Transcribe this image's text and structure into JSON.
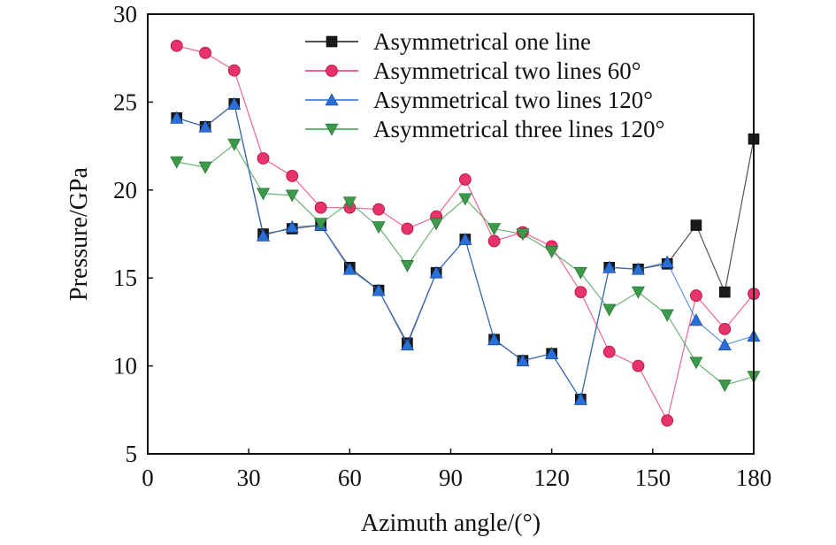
{
  "chart_data": {
    "type": "line",
    "title": "",
    "xlabel": "Azimuth angle/(°)",
    "ylabel": "Pressure/GPa",
    "xlim": [
      0,
      180
    ],
    "ylim": [
      5,
      30
    ],
    "xticks": [
      "0",
      "30",
      "60",
      "90",
      "120",
      "150",
      "180"
    ],
    "yticks": [
      "5",
      "10",
      "15",
      "20",
      "25",
      "30"
    ],
    "grid": false,
    "legend_position": "top-right",
    "x": [
      8.6,
      17.1,
      25.7,
      34.3,
      42.9,
      51.4,
      60,
      68.6,
      77.1,
      85.7,
      94.3,
      102.9,
      111.4,
      120,
      128.6,
      137.1,
      145.7,
      154.3,
      162.9,
      171.4,
      180
    ],
    "series": [
      {
        "name": "Asymmetrical one line",
        "marker": "square",
        "color": "#1a1a1a",
        "values": [
          24.1,
          23.6,
          24.9,
          17.5,
          17.8,
          18.0,
          15.6,
          14.3,
          11.3,
          15.3,
          17.2,
          11.5,
          10.3,
          10.7,
          8.1,
          15.6,
          15.5,
          15.8,
          18.0,
          14.2,
          22.9
        ]
      },
      {
        "name": "Asymmetrical two lines 60°",
        "marker": "circle",
        "color": "#e8336a",
        "values": [
          28.2,
          27.8,
          26.8,
          21.8,
          20.8,
          19.0,
          19.0,
          18.9,
          17.8,
          18.5,
          20.6,
          17.1,
          17.6,
          16.8,
          14.2,
          10.8,
          10.0,
          6.9,
          14.0,
          12.1,
          14.1
        ]
      },
      {
        "name": "Asymmetrical two lines 120°",
        "marker": "triangle-up",
        "color": "#2a6fd6",
        "values": [
          24.1,
          23.6,
          24.9,
          17.4,
          17.9,
          18.0,
          15.5,
          14.3,
          11.2,
          15.3,
          17.2,
          11.5,
          10.3,
          10.7,
          8.1,
          15.6,
          15.5,
          15.9,
          12.6,
          11.2,
          11.7
        ]
      },
      {
        "name": "Asymmetrical three lines 120°",
        "marker": "triangle-down",
        "color": "#3a9a4a",
        "values": [
          21.6,
          21.3,
          22.6,
          19.8,
          19.7,
          18.1,
          19.3,
          17.9,
          15.7,
          18.1,
          19.5,
          17.8,
          17.5,
          16.5,
          15.3,
          13.2,
          14.2,
          12.9,
          10.2,
          8.9,
          9.4
        ]
      }
    ]
  }
}
